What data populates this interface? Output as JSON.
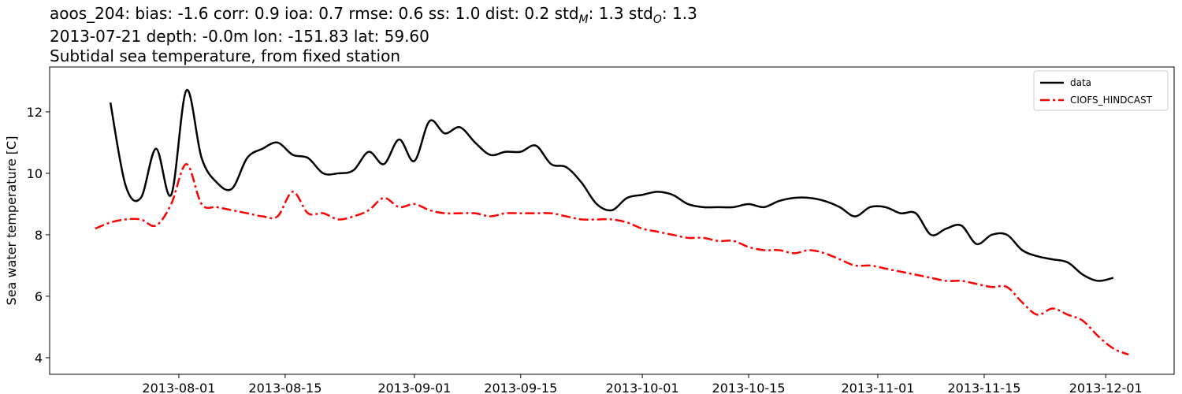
{
  "chart_data": {
    "type": "line",
    "title_parts": [
      {
        "text": "aoos_204: bias: -1.6  corr: 0.9  ioa: 0.7  rmse: 0.6  ss: 1.0  dist: 0.2  std",
        "sub": false
      },
      {
        "text": "M",
        "sub": true
      },
      {
        "text": ": 1.3  std",
        "sub": false
      },
      {
        "text": "O",
        "sub": true
      },
      {
        "text": ": 1.3",
        "sub": false
      }
    ],
    "subtitle": "2013-07-21 depth: -0.0m lon: -151.83 lat: 59.60",
    "subtitle2": "Subtidal sea temperature, from fixed station",
    "ylabel": "Sea water temperature [C]",
    "x": [
      "2013-07-21",
      "2013-07-23",
      "2013-07-25",
      "2013-07-27",
      "2013-07-29",
      "2013-07-31",
      "2013-08-02",
      "2013-08-04",
      "2013-08-06",
      "2013-08-08",
      "2013-08-10",
      "2013-08-12",
      "2013-08-14",
      "2013-08-16",
      "2013-08-18",
      "2013-08-20",
      "2013-08-22",
      "2013-08-24",
      "2013-08-26",
      "2013-08-28",
      "2013-08-30",
      "2013-09-01",
      "2013-09-03",
      "2013-09-05",
      "2013-09-07",
      "2013-09-09",
      "2013-09-11",
      "2013-09-13",
      "2013-09-15",
      "2013-09-17",
      "2013-09-19",
      "2013-09-21",
      "2013-09-23",
      "2013-09-25",
      "2013-09-27",
      "2013-09-29",
      "2013-10-01",
      "2013-10-03",
      "2013-10-05",
      "2013-10-07",
      "2013-10-09",
      "2013-10-11",
      "2013-10-13",
      "2013-10-15",
      "2013-10-17",
      "2013-10-19",
      "2013-10-21",
      "2013-10-23",
      "2013-10-25",
      "2013-10-27",
      "2013-10-29",
      "2013-10-31",
      "2013-11-02",
      "2013-11-04",
      "2013-11-06",
      "2013-11-08",
      "2013-11-10",
      "2013-11-12",
      "2013-11-14",
      "2013-11-16",
      "2013-11-18",
      "2013-11-20",
      "2013-11-22",
      "2013-11-24",
      "2013-11-26",
      "2013-11-28",
      "2013-11-30",
      "2013-12-02",
      "2013-12-04"
    ],
    "series": [
      {
        "name": "data",
        "color": "#000000",
        "dash": "solid",
        "values": [
          null,
          12.3,
          9.6,
          9.2,
          10.8,
          9.3,
          12.7,
          10.5,
          9.7,
          9.5,
          10.5,
          10.8,
          11.0,
          10.6,
          10.5,
          10.0,
          10.0,
          10.1,
          10.7,
          10.3,
          11.1,
          10.4,
          11.7,
          11.3,
          11.5,
          11.0,
          10.6,
          10.7,
          10.7,
          10.9,
          10.3,
          10.2,
          9.7,
          9.0,
          8.8,
          9.2,
          9.3,
          9.4,
          9.3,
          9.0,
          8.9,
          8.9,
          8.9,
          9.0,
          8.9,
          9.1,
          9.2,
          9.2,
          9.1,
          8.9,
          8.6,
          8.9,
          8.9,
          8.7,
          8.7,
          8.0,
          8.2,
          8.3,
          7.7,
          8.0,
          8.0,
          7.5,
          7.3,
          7.2,
          7.1,
          6.7,
          6.5,
          6.6,
          null
        ]
      },
      {
        "name": "CIOFS_HINDCAST",
        "color": "#ff0000",
        "dash": "dashdot",
        "values": [
          8.2,
          8.4,
          8.5,
          8.5,
          8.3,
          9.0,
          10.3,
          9.0,
          8.9,
          8.8,
          8.7,
          8.6,
          8.6,
          9.4,
          8.7,
          8.7,
          8.5,
          8.6,
          8.8,
          9.2,
          8.9,
          9.0,
          8.8,
          8.7,
          8.7,
          8.7,
          8.6,
          8.7,
          8.7,
          8.7,
          8.7,
          8.6,
          8.5,
          8.5,
          8.5,
          8.4,
          8.2,
          8.1,
          8.0,
          7.9,
          7.9,
          7.8,
          7.8,
          7.6,
          7.5,
          7.5,
          7.4,
          7.5,
          7.4,
          7.2,
          7.0,
          7.0,
          6.9,
          6.8,
          6.7,
          6.6,
          6.5,
          6.5,
          6.4,
          6.3,
          6.3,
          5.8,
          5.4,
          5.6,
          5.4,
          5.2,
          4.7,
          4.3,
          4.1
        ]
      }
    ],
    "xlim": [
      "2013-07-15",
      "2013-12-10"
    ],
    "xticks": [
      "2013-08-01",
      "2013-08-15",
      "2013-09-01",
      "2013-09-15",
      "2013-10-01",
      "2013-10-15",
      "2013-11-01",
      "2013-11-15",
      "2013-12-01"
    ],
    "ylim": [
      3.46,
      13.46
    ],
    "yticks": [
      4,
      6,
      8,
      10,
      12
    ],
    "grid": false,
    "legend": "upper right"
  }
}
